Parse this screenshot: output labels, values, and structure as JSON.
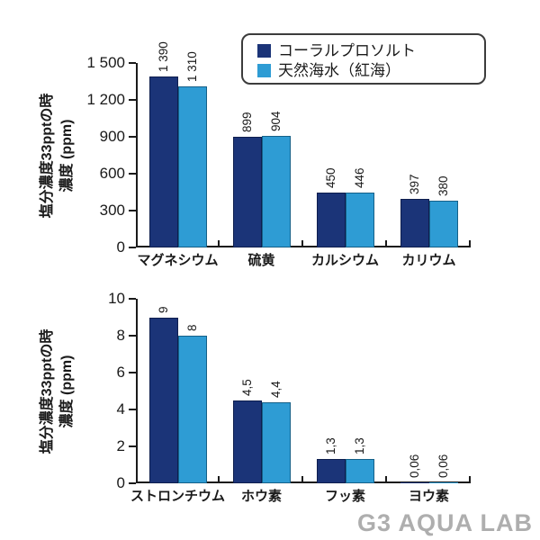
{
  "watermark": "G3 AQUA LAB",
  "colors": {
    "series1": "#1b3478",
    "series1_border": "#0e1e4e",
    "series2": "#2e9cd4",
    "series2_border": "#156088",
    "axis": "#1a1a1a",
    "watermark": "#aeaeae"
  },
  "legend": {
    "items": [
      {
        "label": "コーラルプロソルト",
        "color": "#1b3478"
      },
      {
        "label": "天然海水（紅海）",
        "color": "#2e9cd4"
      }
    ]
  },
  "chart_data": [
    {
      "type": "bar",
      "title": "",
      "ylabel_line1": "塩分濃度33pptの時",
      "ylabel_line2": "濃度 (ppm)",
      "categories": [
        "マグネシウム",
        "硫黄",
        "カルシウム",
        "カリウム"
      ],
      "series": [
        {
          "name": "コーラルプロソルト",
          "color": "#1b3478",
          "border_color": "#0e1e4e",
          "values": [
            1390,
            899,
            450,
            397
          ],
          "value_labels": [
            "1 390",
            "899",
            "450",
            "397"
          ]
        },
        {
          "name": "天然海水（紅海）",
          "color": "#2e9cd4",
          "border_color": "#156088",
          "values": [
            1310,
            904,
            446,
            380
          ],
          "value_labels": [
            "1 310",
            "904",
            "446",
            "380"
          ]
        }
      ],
      "ylim": [
        0,
        1500
      ],
      "yticks": [
        0,
        300,
        600,
        900,
        1200,
        1500
      ],
      "ytick_labels": [
        "0",
        "300",
        "600",
        "900",
        "1 200",
        "1 500"
      ],
      "grid": false,
      "legend_position": "top-right"
    },
    {
      "type": "bar",
      "title": "",
      "ylabel_line1": "塩分濃度33pptの時",
      "ylabel_line2": "濃度 (ppm)",
      "categories": [
        "ストロンチウム",
        "ホウ素",
        "フッ素",
        "ヨウ素"
      ],
      "series": [
        {
          "name": "コーラルプロソルト",
          "color": "#1b3478",
          "border_color": "#0e1e4e",
          "values": [
            9,
            4.5,
            1.3,
            0.06
          ],
          "value_labels": [
            "9",
            "4,5",
            "1,3",
            "0,06"
          ]
        },
        {
          "name": "天然海水（紅海）",
          "color": "#2e9cd4",
          "border_color": "#156088",
          "values": [
            8,
            4.4,
            1.3,
            0.06
          ],
          "value_labels": [
            "8",
            "4,4",
            "1,3",
            "0,06"
          ]
        }
      ],
      "ylim": [
        0,
        10
      ],
      "yticks": [
        0,
        2,
        4,
        6,
        8,
        10
      ],
      "ytick_labels": [
        "0",
        "2",
        "4",
        "6",
        "8",
        "10"
      ],
      "grid": false,
      "legend_position": "none"
    }
  ]
}
